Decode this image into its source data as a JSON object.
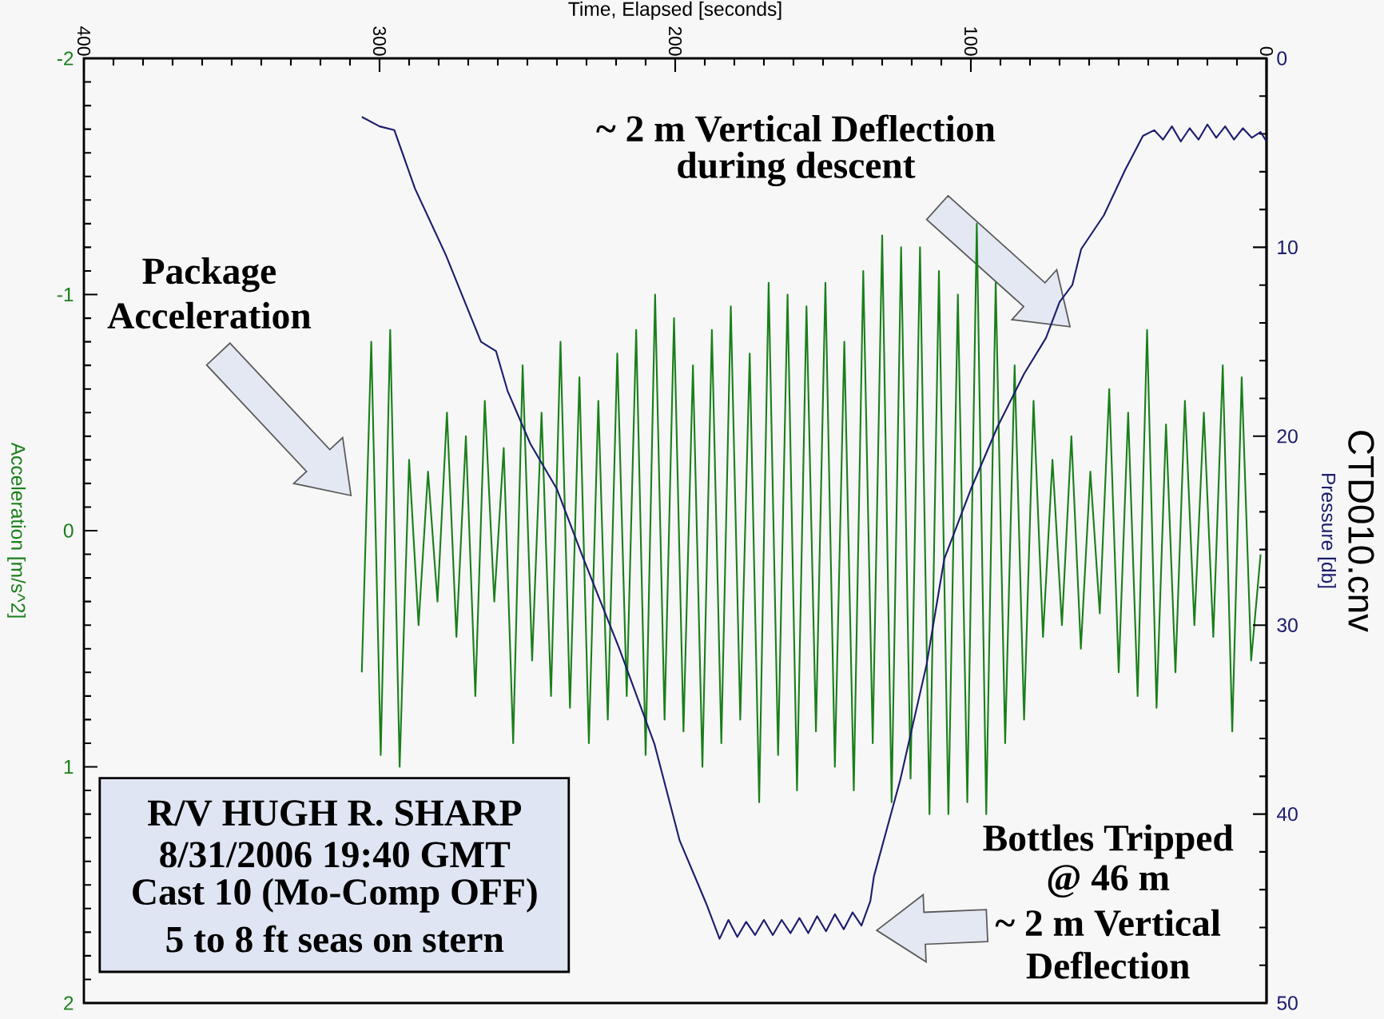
{
  "chart_data": {
    "type": "line",
    "title": "CTD010.cnv",
    "xlabel": "Time, Elapsed [seconds]",
    "ylabel": "Acceleration [m/s^2]",
    "y2label": "Pressure [db]",
    "annotations": [
      "Package",
      "Acceleration",
      "~ 2 m Vertical Deflection",
      "during descent",
      "Bottles Tripped",
      "@ 46 m",
      "~ 2 m Vertical",
      "Deflection",
      "R/V HUGH R. SHARP",
      "8/31/2006 19:40 GMT",
      "Cast 10 (Mo-Comp OFF)",
      "5 to 8 ft seas on stern"
    ],
    "xlim": [
      400,
      0
    ],
    "xticks": [
      400,
      300,
      200,
      100,
      0
    ],
    "ylim": [
      2,
      -2
    ],
    "yticks": [
      -2,
      -1,
      0,
      1,
      2
    ],
    "y2lim": [
      50,
      0
    ],
    "y2ticks": [
      0,
      10,
      20,
      30,
      40,
      50
    ],
    "grid": false,
    "marker": "none",
    "line_style": "solid",
    "series": [
      {
        "color": "#1a7f1a",
        "x": [
          306,
          302.8,
          299.6,
          296.4,
          293.2,
          290,
          286.8,
          283.6,
          280.4,
          277.2,
          274,
          270.8,
          267.6,
          264.4,
          261.2,
          258,
          254.8,
          251.6,
          248.4,
          245.2,
          242,
          238.8,
          235.6,
          232.4,
          229.2,
          226,
          222.8,
          219.6,
          216.4,
          213.2,
          210,
          206.8,
          203.6,
          200.4,
          197.2,
          194,
          190.8,
          187.6,
          184.4,
          181.2,
          178,
          174.8,
          171.6,
          168.4,
          165.2,
          162,
          158.8,
          155.6,
          152.4,
          149.2,
          146,
          142.8,
          139.6,
          136.4,
          133.2,
          130,
          126.8,
          123.6,
          120.4,
          117.2,
          114,
          110.8,
          107.6,
          104.4,
          101.2,
          98,
          94.8,
          91.6,
          88.4,
          85.2,
          82,
          78.8,
          75.6,
          72.4,
          69.2,
          66,
          62.8,
          59.6,
          56.4,
          53.2,
          50,
          46.8,
          43.6,
          40.4,
          37.2,
          34,
          30.8,
          27.6,
          24.4,
          21.2,
          18,
          14.8,
          11.6,
          8.4,
          5.2,
          2
        ],
        "values": [
          0.6,
          -0.8,
          0.95,
          -0.85,
          1.0,
          -0.3,
          0.4,
          -0.25,
          0.3,
          -0.5,
          0.45,
          -0.4,
          0.7,
          -0.55,
          0.3,
          -0.35,
          0.9,
          -0.7,
          0.55,
          -0.5,
          0.7,
          -0.8,
          0.75,
          -0.65,
          0.9,
          -0.55,
          0.8,
          -0.75,
          0.7,
          -0.85,
          0.95,
          -1.0,
          0.8,
          -0.9,
          0.85,
          -0.7,
          1.0,
          -0.85,
          0.9,
          -0.95,
          0.8,
          -0.75,
          1.15,
          -1.05,
          0.95,
          -1.0,
          1.1,
          -0.95,
          0.85,
          -1.05,
          1.0,
          -0.8,
          1.1,
          -1.1,
          0.9,
          -1.25,
          1.15,
          -1.2,
          1.05,
          -1.2,
          1.2,
          -1.1,
          1.2,
          -1.0,
          1.15,
          -1.3,
          1.2,
          -1.05,
          0.9,
          -0.7,
          0.8,
          -0.55,
          0.45,
          -0.3,
          0.4,
          -0.4,
          0.5,
          -0.25,
          0.35,
          -0.6,
          0.6,
          -0.5,
          0.7,
          -0.85,
          0.75,
          -0.45,
          0.6,
          -0.55,
          0.4,
          -0.5,
          0.45,
          -0.7,
          0.85,
          -0.65,
          0.55,
          0.1
        ]
      },
      {
        "color": "#1c1c6e",
        "axis": "y2",
        "x": [
          306,
          300,
          295,
          288,
          277.6,
          265.7,
          260.6,
          256.7,
          249,
          240,
          231,
          219,
          207,
          198.5,
          189.6,
          185,
          182,
          179,
          176,
          173,
          170,
          167,
          164,
          161,
          158,
          155,
          152,
          149,
          146,
          143,
          140,
          137,
          134,
          132.8,
          123.9,
          115,
          109,
          100,
          91,
          82,
          74.6,
          70,
          65.7,
          62.7,
          55,
          47.8,
          41.8,
          38,
          35,
          32,
          29,
          26,
          23,
          20,
          17,
          14,
          11,
          8,
          5,
          2,
          0
        ],
        "values": [
          3.1,
          3.6,
          3.8,
          6.9,
          10.4,
          15.0,
          15.5,
          17.6,
          20.4,
          22.8,
          26.5,
          31.2,
          36.3,
          41.4,
          44.7,
          46.6,
          45.6,
          46.5,
          45.7,
          46.4,
          45.6,
          46.4,
          45.6,
          46.3,
          45.5,
          46.3,
          45.4,
          46.2,
          45.3,
          46.1,
          45.2,
          45.9,
          44.6,
          43.3,
          38.2,
          32.1,
          26.5,
          22.8,
          19.5,
          16.7,
          14.8,
          12.9,
          12.0,
          10.1,
          8.3,
          5.9,
          4.1,
          3.8,
          4.3,
          3.6,
          4.4,
          3.7,
          4.3,
          3.5,
          4.2,
          3.6,
          4.3,
          3.7,
          4.2,
          3.9,
          4.4
        ]
      }
    ]
  }
}
